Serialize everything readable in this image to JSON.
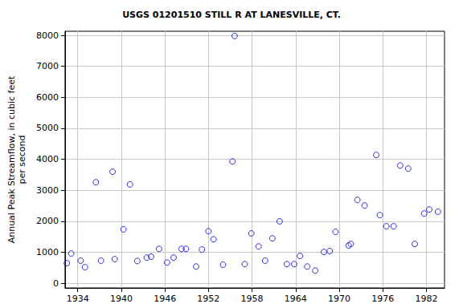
{
  "chart_data": {
    "type": "scatter",
    "title": "USGS 01201510 STILL R AT LANESVILLE, CT.",
    "y_label": "Annual Peak Streamflow, in cubic feet\nper second",
    "x": [
      1932.5,
      1933.1,
      1934.4,
      1935.0,
      1936.5,
      1937.2,
      1938.8,
      1939.1,
      1940.3,
      1941.2,
      1942.2,
      1943.5,
      1944.1,
      1945.2,
      1946.3,
      1947.2,
      1948.3,
      1948.9,
      1950.3,
      1951.1,
      1952.0,
      1952.7,
      1954.0,
      1955.3,
      1955.6,
      1957.0,
      1957.9,
      1958.9,
      1959.8,
      1960.8,
      1961.8,
      1962.8,
      1963.8,
      1964.6,
      1965.6,
      1966.7,
      1967.9,
      1968.7,
      1969.5,
      1971.3,
      1971.6,
      1972.5,
      1973.5,
      1975.1,
      1975.6,
      1976.5,
      1977.5,
      1978.4,
      1979.5,
      1980.4,
      1981.7,
      1982.4,
      1983.6
    ],
    "values": [
      650,
      960,
      730,
      520,
      3260,
      730,
      3600,
      780,
      1740,
      3190,
      720,
      830,
      860,
      1110,
      670,
      830,
      1110,
      1110,
      540,
      1090,
      1680,
      1420,
      600,
      3930,
      7980,
      620,
      1610,
      1190,
      730,
      1450,
      2000,
      620,
      620,
      880,
      540,
      410,
      1010,
      1040,
      1660,
      1220,
      1270,
      2690,
      2510,
      4140,
      2200,
      1840,
      1840,
      3800,
      3700,
      1270,
      2250,
      2380,
      2310
    ],
    "color": "#0000cc",
    "marker": "circle_open",
    "xlim": [
      1932.25,
      1984.5
    ],
    "xticks": [
      1934,
      1940,
      1946,
      1952,
      1958,
      1964,
      1970,
      1976,
      1982
    ],
    "ylim": [
      -150,
      8130
    ],
    "yticks": [
      0,
      1000,
      2000,
      3000,
      4000,
      5000,
      6000,
      7000,
      8000
    ],
    "grid": true
  }
}
